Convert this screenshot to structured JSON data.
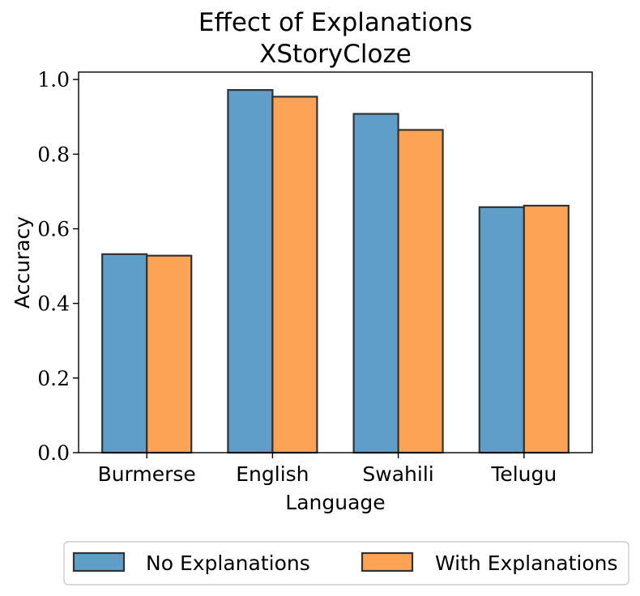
{
  "chart_data": {
    "type": "bar",
    "title": "Effect of Explanations",
    "subtitle": "XStoryCloze",
    "xlabel": "Language",
    "ylabel": "Accuracy",
    "categories": [
      "Burmerse",
      "English",
      "Swahili",
      "Telugu"
    ],
    "series": [
      {
        "name": "No Explanations",
        "values": [
          0.532,
          0.972,
          0.908,
          0.658
        ],
        "color": "#5f9ec9"
      },
      {
        "name": "With Explanations",
        "values": [
          0.528,
          0.954,
          0.865,
          0.662
        ],
        "color": "#fca356"
      }
    ],
    "ylim": [
      0,
      1.02
    ],
    "yticks": [
      "0.0",
      "0.2",
      "0.4",
      "0.6",
      "0.8",
      "1.0"
    ],
    "legend_position": "bottom-center",
    "grid": false,
    "bar_edge_color": "#333333"
  }
}
